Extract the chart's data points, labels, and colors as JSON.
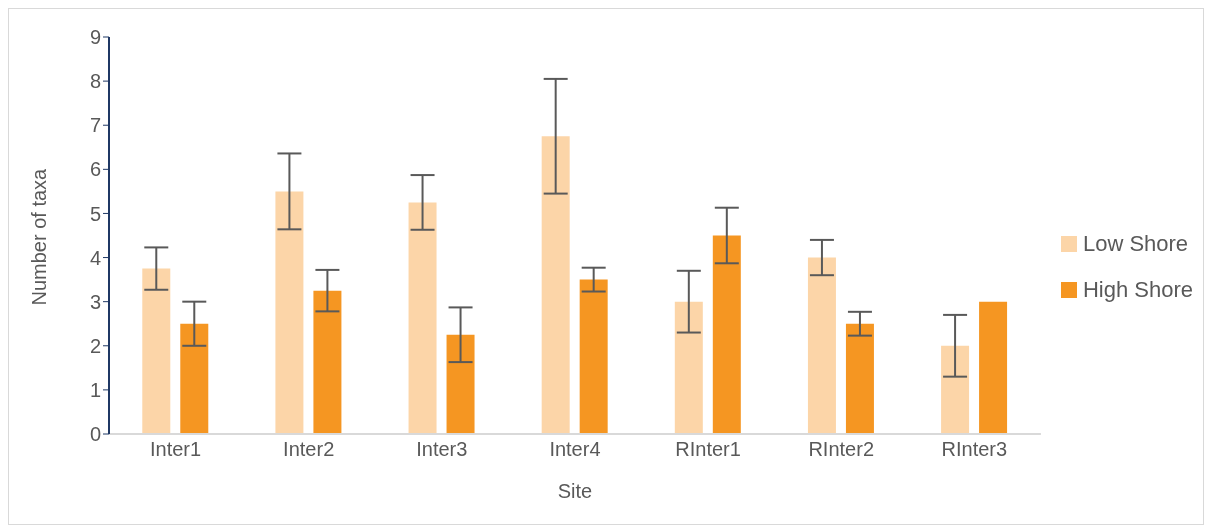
{
  "chart_data": {
    "type": "bar",
    "xlabel": "Site",
    "ylabel": "Number of taxa",
    "categories": [
      "Inter1",
      "Inter2",
      "Inter3",
      "Inter4",
      "RInter1",
      "RInter2",
      "RInter3"
    ],
    "series": [
      {
        "name": "Low Shore",
        "color": "#fcd5a8",
        "values": [
          3.75,
          5.5,
          5.25,
          6.75,
          3.0,
          4.0,
          2.0
        ],
        "errors": [
          0.48,
          0.86,
          0.62,
          1.3,
          0.7,
          0.4,
          0.7
        ]
      },
      {
        "name": "High Shore",
        "color": "#f59622",
        "values": [
          2.5,
          3.25,
          2.25,
          3.5,
          4.5,
          2.5,
          3.0
        ],
        "errors": [
          0.5,
          0.47,
          0.62,
          0.27,
          0.63,
          0.27,
          0
        ]
      }
    ],
    "ylim": [
      0,
      9
    ],
    "yticks": [
      0,
      1,
      2,
      3,
      4,
      5,
      6,
      7,
      8,
      9
    ],
    "grid": false,
    "legend": "right"
  }
}
